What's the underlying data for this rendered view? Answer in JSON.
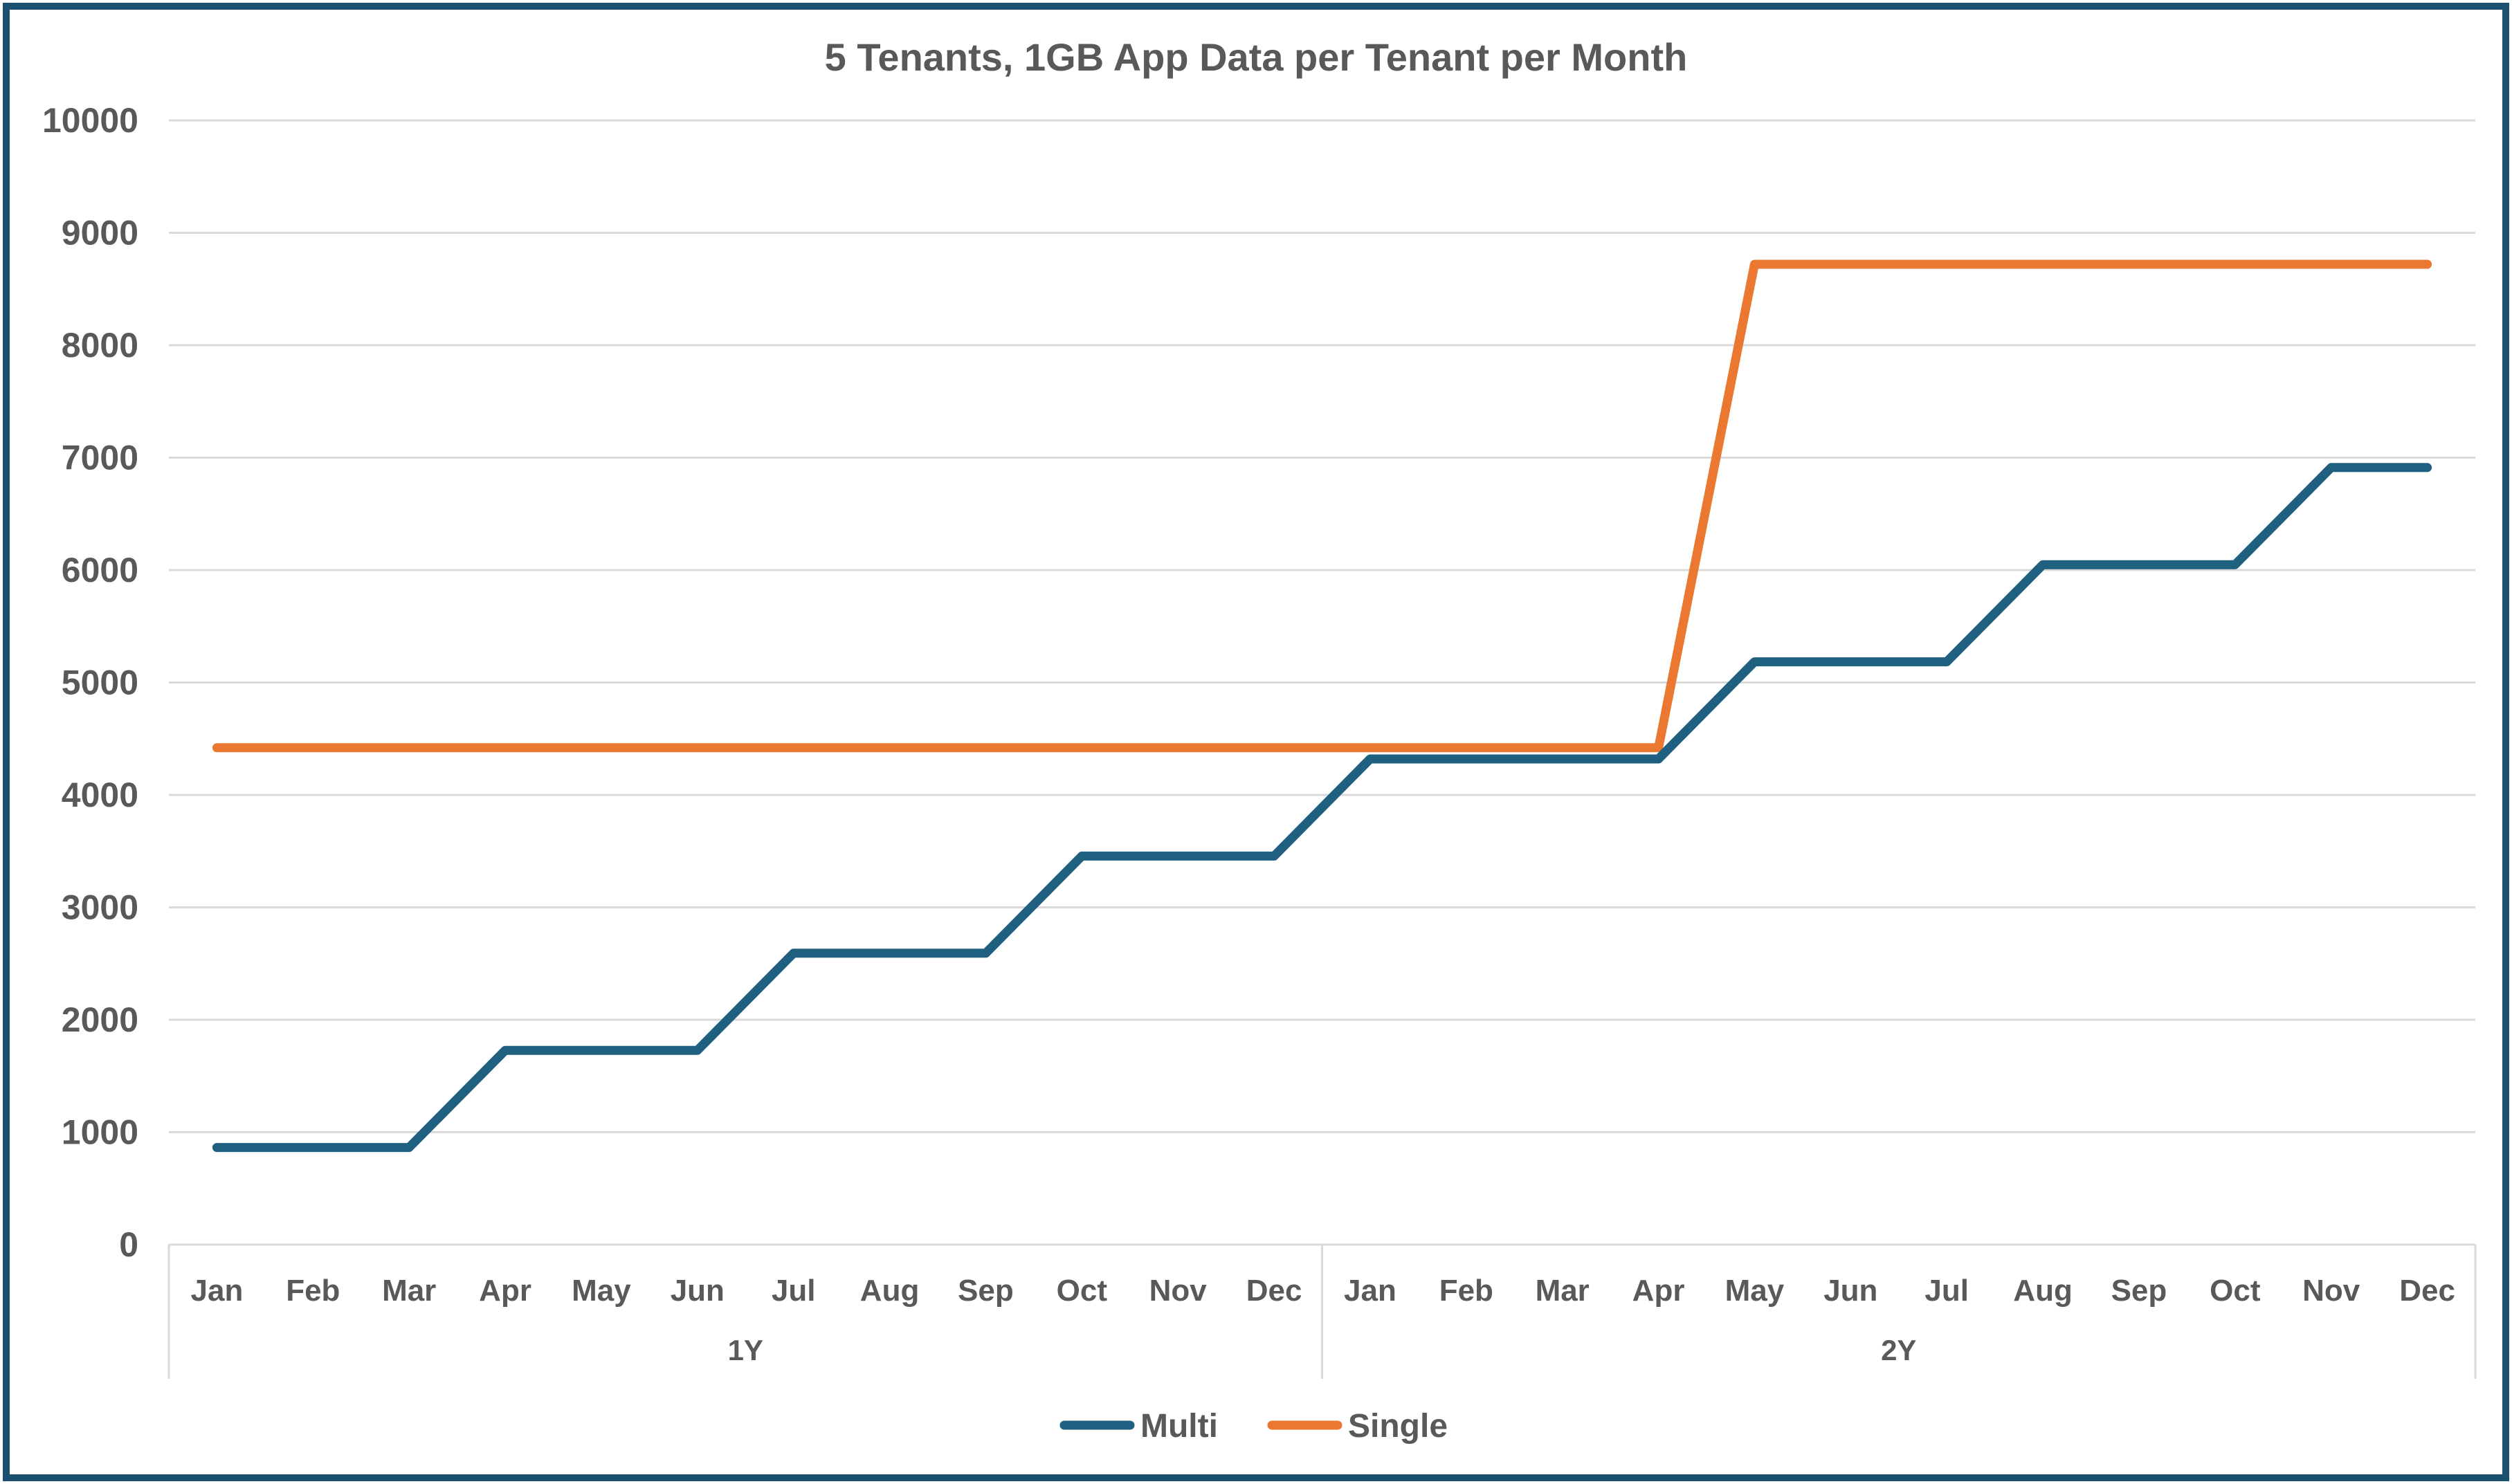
{
  "chart_data": {
    "type": "line",
    "title": "5 Tenants, 1GB App Data per Tenant per Month",
    "categories": [
      "Jan",
      "Feb",
      "Mar",
      "Apr",
      "May",
      "Jun",
      "Jul",
      "Aug",
      "Sep",
      "Oct",
      "Nov",
      "Dec",
      "Jan",
      "Feb",
      "Mar",
      "Apr",
      "May",
      "Jun",
      "Jul",
      "Aug",
      "Sep",
      "Oct",
      "Nov",
      "Dec"
    ],
    "category_groups": [
      {
        "label": "1Y",
        "span": 12
      },
      {
        "label": "2Y",
        "span": 12
      }
    ],
    "series": [
      {
        "name": "Multi",
        "color": "#1F5F80",
        "values": [
          864,
          864,
          864,
          1728,
          1728,
          1728,
          2592,
          2592,
          2592,
          3456,
          3456,
          3456,
          4320,
          4320,
          4320,
          4320,
          5184,
          5184,
          5184,
          6048,
          6048,
          6048,
          6912,
          6912
        ]
      },
      {
        "name": "Single",
        "color": "#EA7830",
        "values": [
          4420,
          4420,
          4420,
          4420,
          4420,
          4420,
          4420,
          4420,
          4420,
          4420,
          4420,
          4420,
          4420,
          4420,
          4420,
          4420,
          8720,
          8720,
          8720,
          8720,
          8720,
          8720,
          8720,
          8720
        ]
      }
    ],
    "ylim": [
      0,
      10000
    ],
    "ytick_interval": 1000,
    "ytick_labels": [
      "0",
      "1000",
      "2000",
      "3000",
      "4000",
      "5000",
      "6000",
      "7000",
      "8000",
      "9000",
      "10000"
    ],
    "grid": true,
    "legend_position": "bottom"
  },
  "frame": {
    "border_color": "#1B5070",
    "background_color": "#FFFFFF"
  },
  "styles": {
    "text_color": "#595959",
    "gridline_color": "#D9D9D9",
    "axis_color": "#D9D9D9"
  }
}
